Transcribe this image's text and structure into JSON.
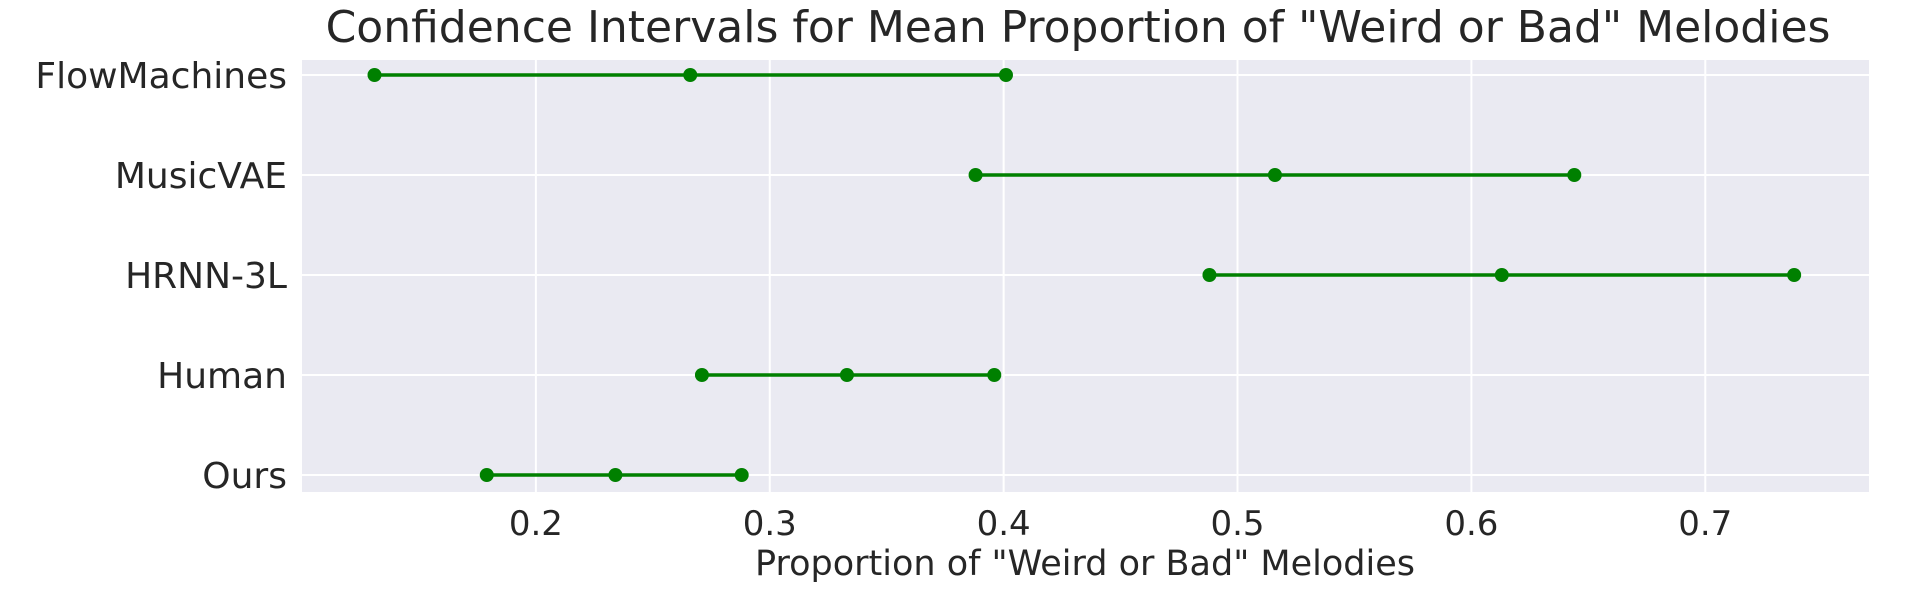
{
  "chart_data": {
    "type": "errorbar",
    "title": "Confidence Intervals for Mean Proportion of \"Weird or Bad\" Melodies",
    "xlabel": "Proportion of \"Weird or Bad\" Melodies",
    "ylabel": "",
    "xlim": [
      0.1,
      0.77
    ],
    "xticks": [
      0.2,
      0.3,
      0.4,
      0.5,
      0.6,
      0.7
    ],
    "xtick_labels": [
      "0.2",
      "0.3",
      "0.4",
      "0.5",
      "0.6",
      "0.7"
    ],
    "grid": true,
    "color": "#008000",
    "series": [
      {
        "category": "FlowMachines",
        "low": 0.131,
        "mean": 0.266,
        "high": 0.401
      },
      {
        "category": "MusicVAE",
        "low": 0.388,
        "mean": 0.516,
        "high": 0.644
      },
      {
        "category": "HRNN-3L",
        "low": 0.488,
        "mean": 0.613,
        "high": 0.738
      },
      {
        "category": "Human",
        "low": 0.271,
        "mean": 0.333,
        "high": 0.396
      },
      {
        "category": "Ours",
        "low": 0.179,
        "mean": 0.234,
        "high": 0.288
      }
    ]
  }
}
